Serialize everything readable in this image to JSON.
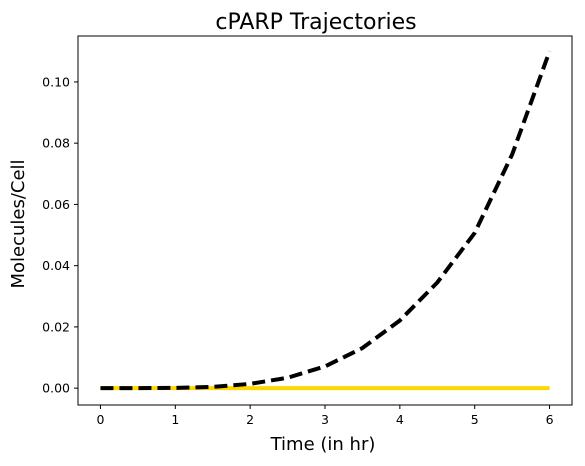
{
  "chart_data": {
    "type": "line",
    "title": "cPARP Trajectories",
    "xlabel": "Time (in hr)",
    "ylabel": "Molecules/Cell",
    "xlim": [
      -0.3,
      6.3
    ],
    "ylim": [
      -0.0055,
      0.115
    ],
    "xticks": [
      0,
      1,
      2,
      3,
      4,
      5,
      6
    ],
    "xtick_labels": [
      "0",
      "1",
      "2",
      "3",
      "4",
      "5",
      "6"
    ],
    "yticks": [
      0.0,
      0.02,
      0.04,
      0.06,
      0.08,
      0.1
    ],
    "ytick_labels": [
      "0.00",
      "0.02",
      "0.04",
      "0.06",
      "0.08",
      "0.10"
    ],
    "grid": false,
    "legend": false,
    "series": [
      {
        "color": "#ffd700",
        "style": "solid",
        "x": [
          0,
          1,
          2,
          3,
          4,
          5,
          6
        ],
        "y": [
          0,
          0,
          0,
          0,
          0,
          0,
          0
        ]
      },
      {
        "color": "#000000",
        "style": "dashed",
        "x": [
          0,
          0.5,
          1,
          1.5,
          2,
          2.5,
          3,
          3.5,
          4,
          4.5,
          5,
          5.5,
          6
        ],
        "y": [
          0,
          0.0,
          0.0001,
          0.0004,
          0.0014,
          0.0034,
          0.0071,
          0.0131,
          0.0221,
          0.0345,
          0.0507,
          0.0763,
          0.11
        ]
      }
    ]
  }
}
